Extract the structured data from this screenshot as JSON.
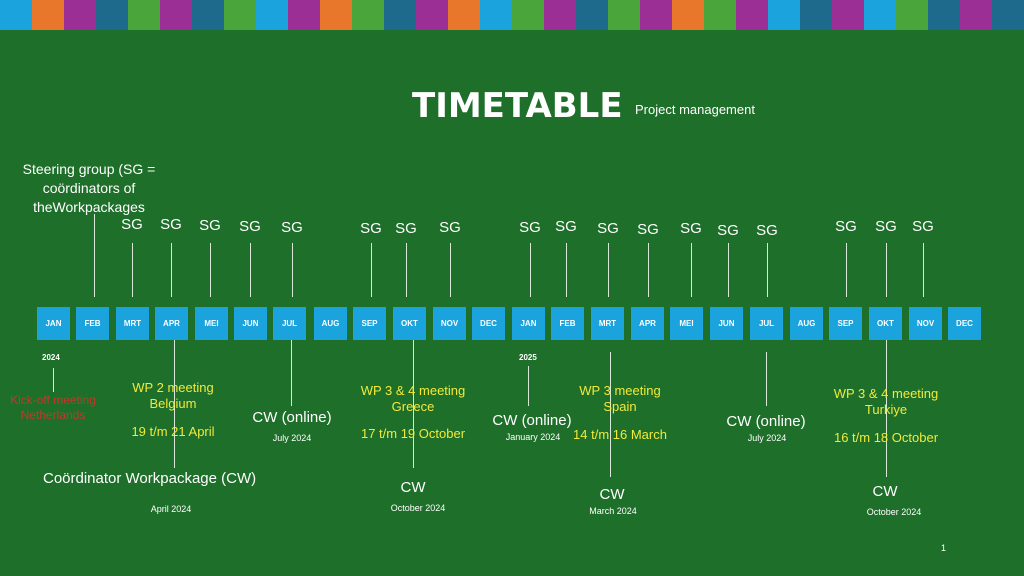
{
  "header": {
    "title": "TIMETABLE",
    "subtitle": "Project management",
    "stripe_colors": [
      "#1aa3dd",
      "#e8762b",
      "#9c2f96",
      "#1d6a8c",
      "#4aa63a",
      "#9c2f96",
      "#1d6a8c",
      "#4aa63a",
      "#1aa3dd",
      "#9c2f96",
      "#e8762b",
      "#4aa63a",
      "#1d6a8c",
      "#9c2f96",
      "#e8762b",
      "#1aa3dd",
      "#4aa63a",
      "#9c2f96",
      "#1d6a8c",
      "#4aa63a",
      "#9c2f96",
      "#e8762b",
      "#4aa63a",
      "#9c2f96",
      "#1aa3dd",
      "#1d6a8c",
      "#9c2f96",
      "#1aa3dd",
      "#4aa63a",
      "#1d6a8c",
      "#9c2f96",
      "#1d6a8c"
    ]
  },
  "steering_group_description": "Steering group (SG = coördinators of theWorkpackages",
  "sg_label": "SG",
  "months": [
    "JAN",
    "FEB",
    "MRT",
    "APR",
    "MEI",
    "JUN",
    "JUL",
    "AUG",
    "SEP",
    "OKT",
    "NOV",
    "DEC",
    "JAN",
    "FEB",
    "MRT",
    "APR",
    "MEI",
    "JUN",
    "JUL",
    "AUG",
    "SEP",
    "OKT",
    "NOV",
    "DEC"
  ],
  "years": [
    "2024",
    "2025"
  ],
  "kickoff": "Kick-off meeting Netherlands",
  "wp2": {
    "title": "WP 2 meeting\nBelgium",
    "dates": "19 t/m 21 April"
  },
  "wp34_greece": {
    "title": "WP 3 & 4 meeting\nGreece",
    "dates": "17 t/m 19 October"
  },
  "wp3_spain": {
    "title": "WP 3 meeting\nSpain",
    "dates": "14 t/m 16 March"
  },
  "wp34_turkiye": {
    "title": "WP 3 & 4 meeting\nTurkiye",
    "dates": "16 t/m 18 October"
  },
  "cw_events": [
    {
      "label": "CW (online)",
      "date": "July 2024"
    },
    {
      "label": "CW (online)",
      "date": "January 2024"
    },
    {
      "label": "CW (online)",
      "date": "July 2024"
    },
    {
      "label": "CW",
      "date": "October 2024"
    },
    {
      "label": "CW",
      "date": "March 2024"
    },
    {
      "label": "CW",
      "date": "October 2024"
    }
  ],
  "cw_description": "Coördinator Workpackage (CW)",
  "cw_description_date": "April 2024",
  "page_number": "1"
}
